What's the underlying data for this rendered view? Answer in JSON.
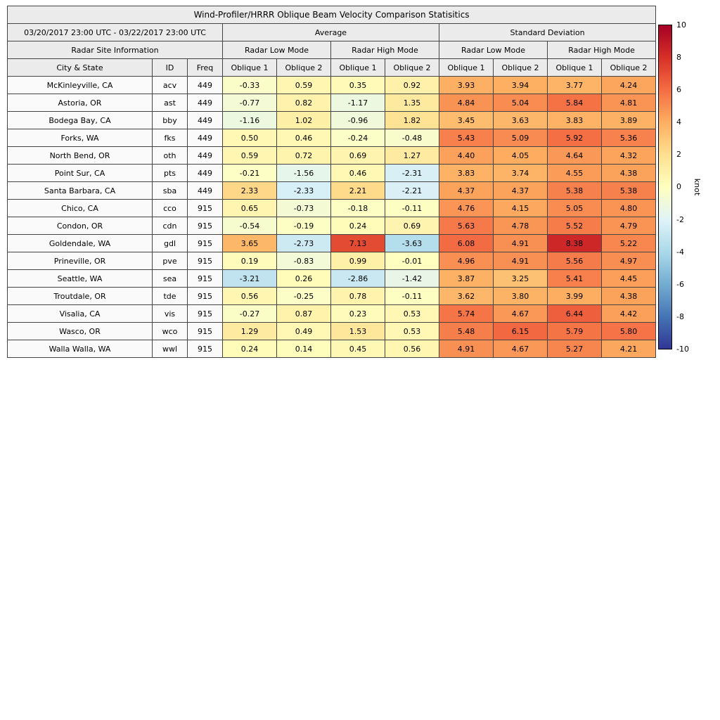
{
  "header": {
    "title": "Wind-Profiler/HRRR Oblique Beam Velocity Comparison Statisitics",
    "date_range": "03/20/2017 23:00 UTC - 03/22/2017 23:00 UTC",
    "average": "Average",
    "std_dev": "Standard Deviation",
    "site_info": "Radar Site Information",
    "mode_headers": [
      "Radar Low Mode",
      "Radar High Mode",
      "Radar Low Mode",
      "Radar High Mode"
    ],
    "col_city": "City & State",
    "col_id": "ID",
    "col_freq": "Freq",
    "oblique_headers": [
      "Oblique 1",
      "Oblique 2",
      "Oblique 1",
      "Oblique 2",
      "Oblique 1",
      "Oblique 2",
      "Oblique 1",
      "Oblique 2"
    ]
  },
  "colorbar": {
    "label": "knot",
    "ticks": [
      "10",
      "8",
      "6",
      "4",
      "2",
      "0",
      "-2",
      "-4",
      "-6",
      "-8",
      "-10"
    ],
    "gradient_stops": [
      "#a50026",
      "#d73027",
      "#f46d43",
      "#fdae61",
      "#fee090",
      "#ffffbf",
      "#e0f3f8",
      "#abd9e9",
      "#74add1",
      "#4575b4",
      "#313695"
    ]
  },
  "chart_data": {
    "type": "heatmap",
    "title": "Wind-Profiler/HRRR Oblique Beam Velocity Comparison Statisitics",
    "unit": "knot",
    "value_range": [
      -10,
      10
    ],
    "value_columns": [
      "Average Radar Low Mode Oblique 1",
      "Average Radar Low Mode Oblique 2",
      "Average Radar High Mode Oblique 1",
      "Average Radar High Mode Oblique 2",
      "Standard Deviation Radar Low Mode Oblique 1",
      "Standard Deviation Radar Low Mode Oblique 2",
      "Standard Deviation Radar High Mode Oblique 1",
      "Standard Deviation Radar High Mode Oblique 2"
    ],
    "rows": [
      {
        "city": "McKinleyville, CA",
        "id": "acv",
        "freq": "449",
        "values": [
          -0.33,
          0.59,
          0.35,
          0.92,
          3.93,
          3.94,
          3.77,
          4.24
        ]
      },
      {
        "city": "Astoria, OR",
        "id": "ast",
        "freq": "449",
        "values": [
          -0.77,
          0.82,
          -1.17,
          1.35,
          4.84,
          5.04,
          5.84,
          4.81
        ]
      },
      {
        "city": "Bodega Bay, CA",
        "id": "bby",
        "freq": "449",
        "values": [
          -1.16,
          1.02,
          -0.96,
          1.82,
          3.45,
          3.63,
          3.83,
          3.89
        ]
      },
      {
        "city": "Forks, WA",
        "id": "fks",
        "freq": "449",
        "values": [
          0.5,
          0.46,
          -0.24,
          -0.48,
          5.43,
          5.09,
          5.92,
          5.36
        ]
      },
      {
        "city": "North Bend, OR",
        "id": "oth",
        "freq": "449",
        "values": [
          0.59,
          0.72,
          0.69,
          1.27,
          4.4,
          4.05,
          4.64,
          4.32
        ]
      },
      {
        "city": "Point Sur, CA",
        "id": "pts",
        "freq": "449",
        "values": [
          -0.21,
          -1.56,
          0.46,
          -2.31,
          3.83,
          3.74,
          4.55,
          4.38
        ]
      },
      {
        "city": "Santa Barbara, CA",
        "id": "sba",
        "freq": "449",
        "values": [
          2.33,
          -2.33,
          2.21,
          -2.21,
          4.37,
          4.37,
          5.38,
          5.38
        ]
      },
      {
        "city": "Chico, CA",
        "id": "cco",
        "freq": "915",
        "values": [
          0.65,
          -0.73,
          -0.18,
          -0.11,
          4.76,
          4.15,
          5.05,
          4.8
        ]
      },
      {
        "city": "Condon, OR",
        "id": "cdn",
        "freq": "915",
        "values": [
          -0.54,
          -0.19,
          0.24,
          0.69,
          5.63,
          4.78,
          5.52,
          4.79
        ]
      },
      {
        "city": "Goldendale, WA",
        "id": "gdl",
        "freq": "915",
        "values": [
          3.65,
          -2.73,
          7.13,
          -3.63,
          6.08,
          4.91,
          8.38,
          5.22
        ]
      },
      {
        "city": "Prineville, OR",
        "id": "pve",
        "freq": "915",
        "values": [
          0.19,
          -0.83,
          0.99,
          -0.01,
          4.96,
          4.91,
          5.56,
          4.97
        ]
      },
      {
        "city": "Seattle, WA",
        "id": "sea",
        "freq": "915",
        "values": [
          -3.21,
          0.26,
          -2.86,
          -1.42,
          3.87,
          3.25,
          5.41,
          4.45
        ]
      },
      {
        "city": "Troutdale, OR",
        "id": "tde",
        "freq": "915",
        "values": [
          0.56,
          -0.25,
          0.78,
          -0.11,
          3.62,
          3.8,
          3.99,
          4.38
        ]
      },
      {
        "city": "Visalia, CA",
        "id": "vis",
        "freq": "915",
        "values": [
          -0.27,
          0.87,
          0.23,
          0.53,
          5.74,
          4.67,
          6.44,
          4.42
        ]
      },
      {
        "city": "Wasco, OR",
        "id": "wco",
        "freq": "915",
        "values": [
          1.29,
          0.49,
          1.53,
          0.53,
          5.48,
          6.15,
          5.79,
          5.8
        ]
      },
      {
        "city": "Walla Walla, WA",
        "id": "wwl",
        "freq": "915",
        "values": [
          0.24,
          0.14,
          0.45,
          0.56,
          4.91,
          4.67,
          5.27,
          4.21
        ]
      }
    ]
  }
}
